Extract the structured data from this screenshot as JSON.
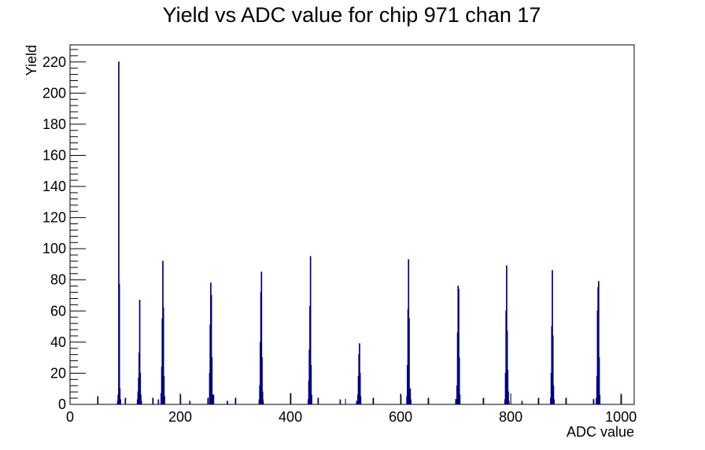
{
  "chart_data": {
    "type": "bar",
    "title": "Yield vs ADC value for chip 971 chan 17",
    "xlabel": "ADC value",
    "ylabel": "Yield",
    "xlim": [
      0,
      1024
    ],
    "ylim": [
      0,
      231
    ],
    "x_ticks": [
      0,
      200,
      400,
      600,
      800,
      1000
    ],
    "y_ticks": [
      0,
      20,
      40,
      60,
      80,
      100,
      120,
      140,
      160,
      180,
      200,
      220
    ],
    "grid": false,
    "legend": "none",
    "colors": {
      "line": "#000080"
    },
    "bins": [
      {
        "x": 50,
        "y": 5
      },
      {
        "x": 86,
        "y": 2
      },
      {
        "x": 87,
        "y": 6
      },
      {
        "x": 88,
        "y": 220
      },
      {
        "x": 89,
        "y": 77
      },
      {
        "x": 90,
        "y": 10
      },
      {
        "x": 91,
        "y": 3
      },
      {
        "x": 100,
        "y": 4
      },
      {
        "x": 122,
        "y": 3
      },
      {
        "x": 123,
        "y": 8
      },
      {
        "x": 124,
        "y": 17
      },
      {
        "x": 125,
        "y": 33
      },
      {
        "x": 126,
        "y": 67
      },
      {
        "x": 127,
        "y": 20
      },
      {
        "x": 128,
        "y": 6
      },
      {
        "x": 129,
        "y": 2
      },
      {
        "x": 150,
        "y": 4
      },
      {
        "x": 160,
        "y": 3
      },
      {
        "x": 165,
        "y": 7
      },
      {
        "x": 166,
        "y": 24
      },
      {
        "x": 167,
        "y": 55
      },
      {
        "x": 168,
        "y": 92
      },
      {
        "x": 169,
        "y": 62
      },
      {
        "x": 170,
        "y": 18
      },
      {
        "x": 171,
        "y": 5
      },
      {
        "x": 200,
        "y": 6
      },
      {
        "x": 217,
        "y": 2
      },
      {
        "x": 250,
        "y": 4
      },
      {
        "x": 253,
        "y": 20
      },
      {
        "x": 254,
        "y": 51
      },
      {
        "x": 255,
        "y": 78
      },
      {
        "x": 256,
        "y": 70
      },
      {
        "x": 257,
        "y": 30
      },
      {
        "x": 258,
        "y": 6
      },
      {
        "x": 260,
        "y": 6
      },
      {
        "x": 285,
        "y": 2
      },
      {
        "x": 300,
        "y": 4
      },
      {
        "x": 343,
        "y": 3
      },
      {
        "x": 344,
        "y": 12
      },
      {
        "x": 345,
        "y": 40
      },
      {
        "x": 346,
        "y": 72
      },
      {
        "x": 347,
        "y": 85
      },
      {
        "x": 348,
        "y": 30
      },
      {
        "x": 349,
        "y": 8
      },
      {
        "x": 350,
        "y": 2
      },
      {
        "x": 400,
        "y": 7
      },
      {
        "x": 432,
        "y": 3
      },
      {
        "x": 433,
        "y": 15
      },
      {
        "x": 434,
        "y": 35
      },
      {
        "x": 435,
        "y": 63
      },
      {
        "x": 436,
        "y": 95
      },
      {
        "x": 437,
        "y": 25
      },
      {
        "x": 438,
        "y": 6
      },
      {
        "x": 450,
        "y": 4
      },
      {
        "x": 490,
        "y": 3
      },
      {
        "x": 520,
        "y": 2
      },
      {
        "x": 522,
        "y": 6
      },
      {
        "x": 523,
        "y": 18
      },
      {
        "x": 524,
        "y": 32
      },
      {
        "x": 525,
        "y": 39
      },
      {
        "x": 526,
        "y": 20
      },
      {
        "x": 527,
        "y": 5
      },
      {
        "x": 550,
        "y": 4
      },
      {
        "x": 600,
        "y": 6
      },
      {
        "x": 611,
        "y": 5
      },
      {
        "x": 612,
        "y": 25
      },
      {
        "x": 613,
        "y": 61
      },
      {
        "x": 614,
        "y": 93
      },
      {
        "x": 615,
        "y": 55
      },
      {
        "x": 616,
        "y": 10
      },
      {
        "x": 617,
        "y": 10
      },
      {
        "x": 618,
        "y": 3
      },
      {
        "x": 650,
        "y": 4
      },
      {
        "x": 700,
        "y": 3
      },
      {
        "x": 702,
        "y": 12
      },
      {
        "x": 703,
        "y": 46
      },
      {
        "x": 704,
        "y": 76
      },
      {
        "x": 705,
        "y": 74
      },
      {
        "x": 706,
        "y": 30
      },
      {
        "x": 707,
        "y": 6
      },
      {
        "x": 750,
        "y": 4
      },
      {
        "x": 789,
        "y": 3
      },
      {
        "x": 790,
        "y": 20
      },
      {
        "x": 791,
        "y": 60
      },
      {
        "x": 792,
        "y": 89
      },
      {
        "x": 793,
        "y": 47
      },
      {
        "x": 794,
        "y": 22
      },
      {
        "x": 795,
        "y": 8
      },
      {
        "x": 796,
        "y": 2
      },
      {
        "x": 820,
        "y": 2
      },
      {
        "x": 850,
        "y": 4
      },
      {
        "x": 872,
        "y": 4
      },
      {
        "x": 873,
        "y": 20
      },
      {
        "x": 874,
        "y": 50
      },
      {
        "x": 875,
        "y": 86
      },
      {
        "x": 876,
        "y": 44
      },
      {
        "x": 877,
        "y": 12
      },
      {
        "x": 878,
        "y": 3
      },
      {
        "x": 900,
        "y": 4
      },
      {
        "x": 950,
        "y": 3
      },
      {
        "x": 955,
        "y": 4
      },
      {
        "x": 956,
        "y": 18
      },
      {
        "x": 957,
        "y": 60
      },
      {
        "x": 958,
        "y": 75
      },
      {
        "x": 959,
        "y": 79
      },
      {
        "x": 960,
        "y": 30
      },
      {
        "x": 961,
        "y": 6
      },
      {
        "x": 1000,
        "y": 6
      }
    ]
  }
}
